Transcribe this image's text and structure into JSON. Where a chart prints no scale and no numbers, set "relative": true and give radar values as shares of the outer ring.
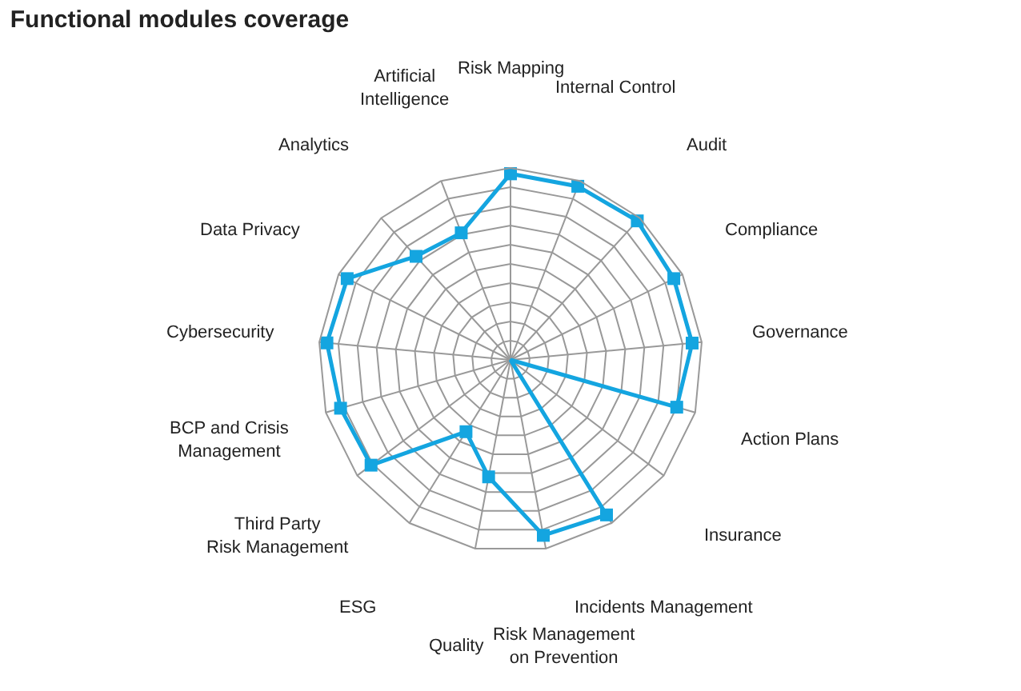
{
  "chart_data": {
    "type": "radar",
    "title": "Functional modules coverage",
    "relative": true,
    "marker": "square",
    "grid": true,
    "categories": [
      "Risk Mapping",
      "Internal Control",
      "Audit",
      "Compliance",
      "Governance",
      "Action Plans",
      "Insurance",
      "Incidents Management",
      "Risk Management on Prevention",
      "Quality",
      "ESG",
      "Third Party Risk Management",
      "BCP and Crisis Management",
      "Cybersecurity",
      "Data Privacy",
      "Analytics",
      "Artificial Intelligence"
    ],
    "series": [
      {
        "color": "#14a5e0",
        "values": [
          0.97,
          0.97,
          0.98,
          0.95,
          0.95,
          0.9,
          0,
          0.95,
          0.93,
          0.62,
          0.44,
          0.91,
          0.92,
          0.96,
          0.95,
          0.73,
          0.71
        ]
      }
    ]
  }
}
